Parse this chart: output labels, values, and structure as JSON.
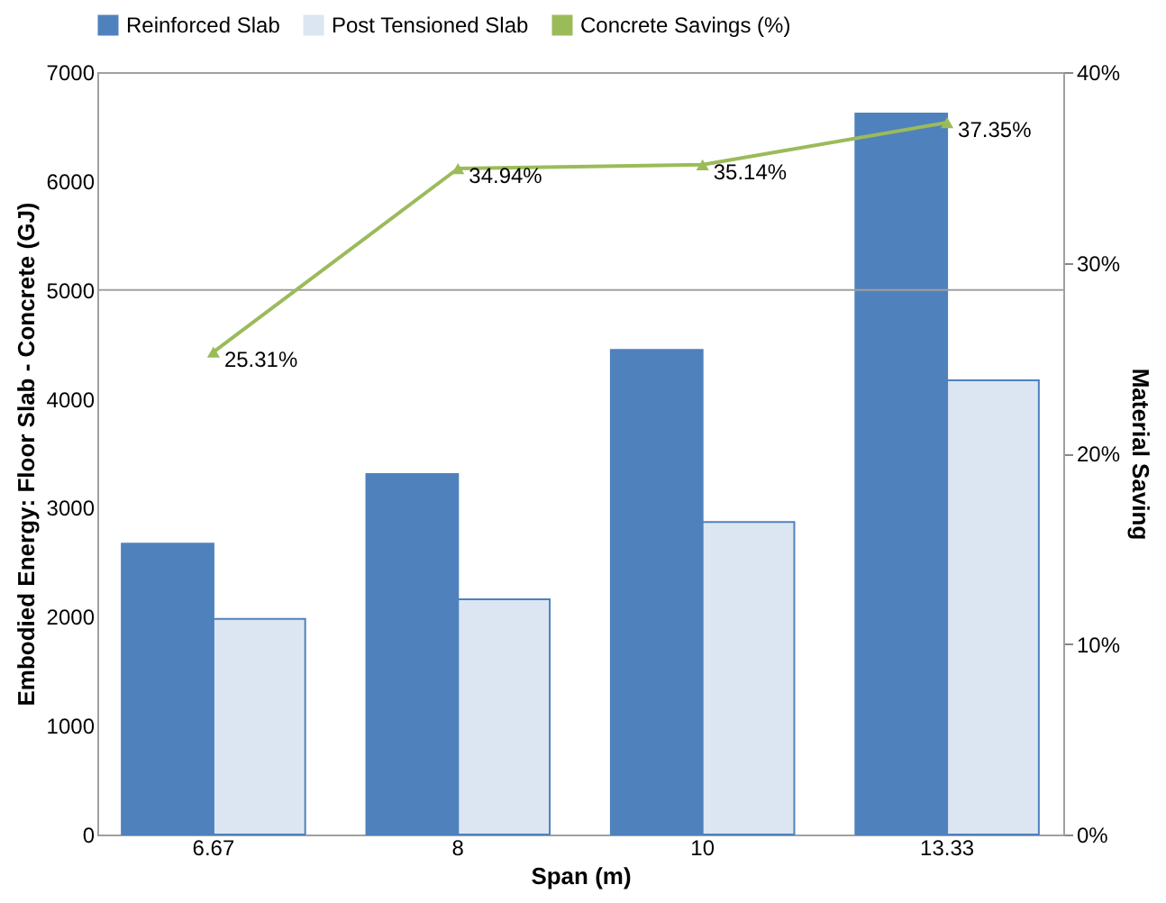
{
  "chart_data": {
    "type": "bar",
    "xlabel": "Span (m)",
    "ylabel": "Embodied Energy: Floor Slab - Concrete (GJ)",
    "y2label": "Material Saving",
    "categories": [
      "6.67",
      "8",
      "10",
      "13.33"
    ],
    "series": [
      {
        "name": "Reinforced Slab",
        "color": "#4f81bd",
        "values": [
          2670,
          3310,
          4450,
          6620
        ]
      },
      {
        "name": "Post Tensioned Slab",
        "color": "#dce6f2",
        "values": [
          1980,
          2160,
          2870,
          4170
        ]
      },
      {
        "name": "Concrete Savings (%)",
        "type": "line",
        "axis": "y2",
        "color": "#9bbb59",
        "marker": "triangle",
        "values": [
          25.31,
          34.94,
          35.14,
          37.35
        ],
        "value_labels": [
          "25.31%",
          "34.94%",
          "35.14%",
          "37.35%"
        ]
      }
    ],
    "ylim": [
      0,
      7000
    ],
    "yticks": [
      0,
      1000,
      2000,
      3000,
      4000,
      5000,
      6000,
      7000
    ],
    "y2lim": [
      0,
      40
    ],
    "y2ticks": [
      {
        "value": 0,
        "label": "0%"
      },
      {
        "value": 10,
        "label": "10%"
      },
      {
        "value": 20,
        "label": "20%"
      },
      {
        "value": 30,
        "label": "30%"
      },
      {
        "value": 40,
        "label": "40%"
      }
    ],
    "ref_lines": [
      {
        "axis": "y",
        "value": 5000,
        "color": "#a0a0a0"
      }
    ],
    "grid": false,
    "legend": "top"
  }
}
